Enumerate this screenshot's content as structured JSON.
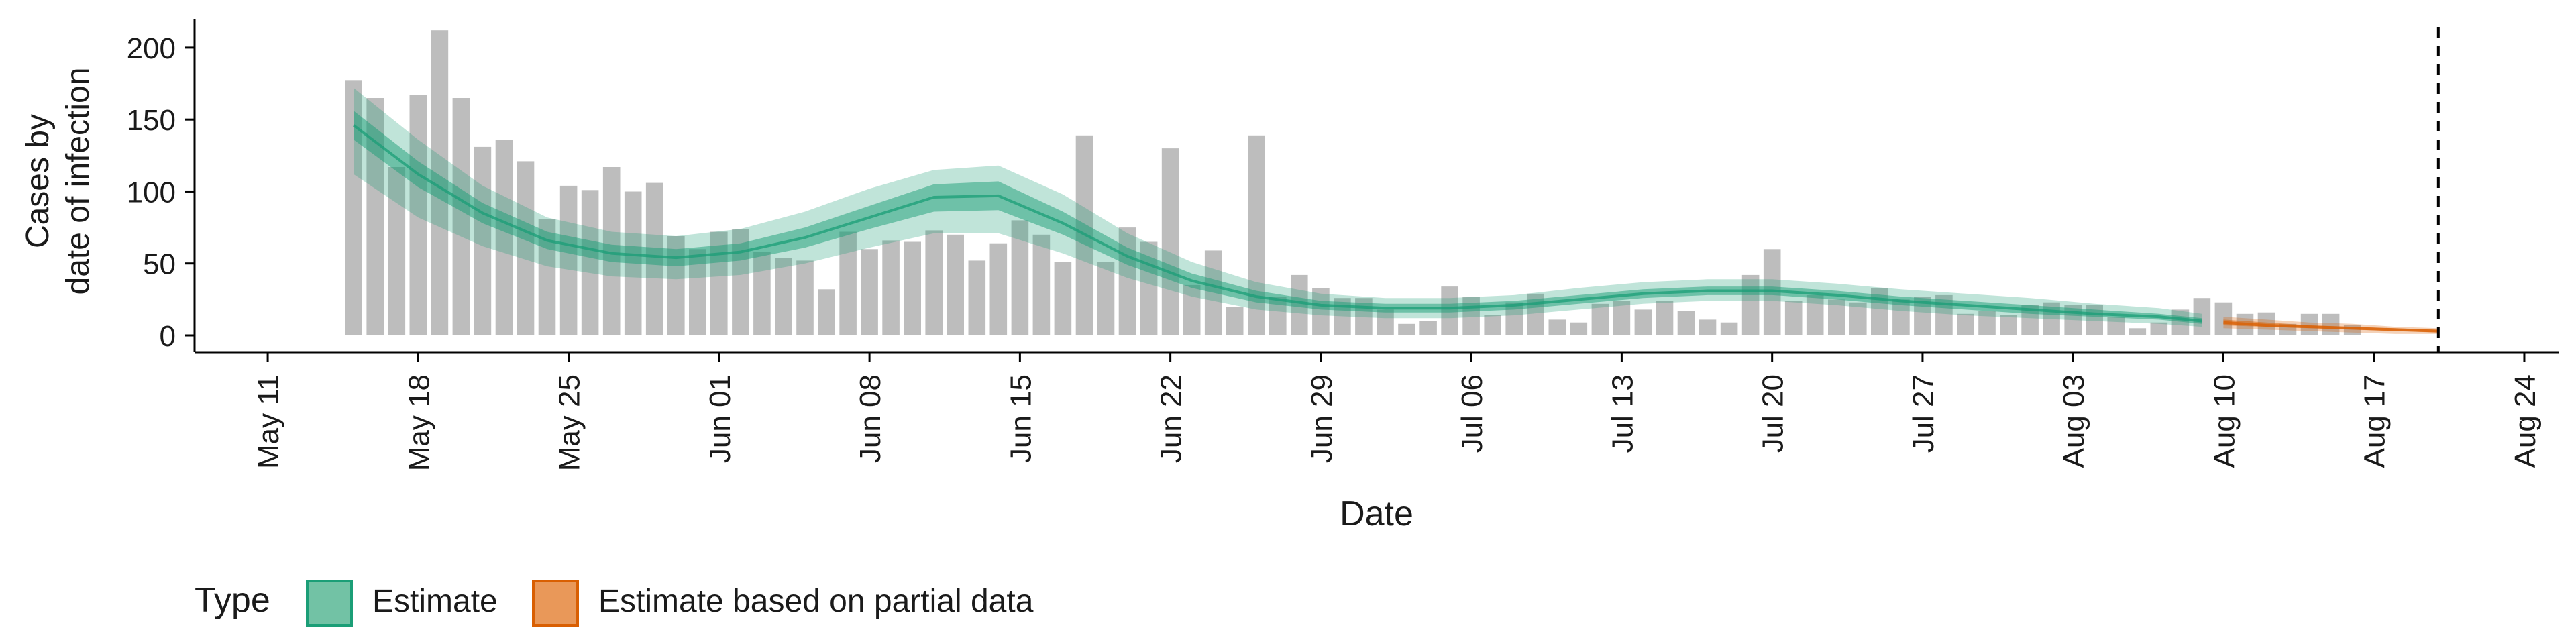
{
  "chart_data": {
    "type": "bar",
    "xlabel": "Date",
    "ylabel_lines": [
      "Cases by",
      "date of infection"
    ],
    "ylim": [
      0,
      220
    ],
    "y_ticks": [
      0,
      50,
      100,
      150,
      200
    ],
    "x_range": [
      "2020-05-09",
      "2020-08-25"
    ],
    "x_ticks": [
      {
        "date": "2020-05-11",
        "label": "May 11"
      },
      {
        "date": "2020-05-18",
        "label": "May 18"
      },
      {
        "date": "2020-05-25",
        "label": "May 25"
      },
      {
        "date": "2020-06-01",
        "label": "Jun 01"
      },
      {
        "date": "2020-06-08",
        "label": "Jun 08"
      },
      {
        "date": "2020-06-15",
        "label": "Jun 15"
      },
      {
        "date": "2020-06-22",
        "label": "Jun 22"
      },
      {
        "date": "2020-06-29",
        "label": "Jun 29"
      },
      {
        "date": "2020-07-06",
        "label": "Jul 06"
      },
      {
        "date": "2020-07-13",
        "label": "Jul 13"
      },
      {
        "date": "2020-07-20",
        "label": "Jul 20"
      },
      {
        "date": "2020-07-27",
        "label": "Jul 27"
      },
      {
        "date": "2020-08-03",
        "label": "Aug 03"
      },
      {
        "date": "2020-08-10",
        "label": "Aug 10"
      },
      {
        "date": "2020-08-17",
        "label": "Aug 17"
      },
      {
        "date": "2020-08-24",
        "label": "Aug 24"
      }
    ],
    "grid": false,
    "forecast_date": "2020-08-20",
    "bars": {
      "start_date": "2020-05-15",
      "color": "#bdbdbd",
      "values": [
        177,
        165,
        117,
        167,
        212,
        165,
        131,
        136,
        121,
        81,
        104,
        101,
        117,
        100,
        106,
        69,
        60,
        72,
        74,
        58,
        54,
        52,
        32,
        72,
        60,
        66,
        65,
        73,
        70,
        52,
        64,
        80,
        70,
        51,
        139,
        51,
        75,
        65,
        130,
        35,
        59,
        20,
        139,
        27,
        42,
        33,
        26,
        26,
        18,
        8,
        10,
        34,
        27,
        14,
        23,
        29,
        11,
        9,
        22,
        24,
        18,
        24,
        17,
        11,
        9,
        42,
        60,
        24,
        28,
        25,
        23,
        33,
        25,
        27,
        28,
        15,
        17,
        14,
        21,
        23,
        21,
        21,
        13,
        5,
        9,
        18,
        26,
        23,
        15,
        16,
        8,
        15,
        15,
        7
      ]
    },
    "series": [
      {
        "name": "Estimate",
        "color": "#1b9e77",
        "x": [
          "2020-05-15",
          "2020-05-18",
          "2020-05-21",
          "2020-05-24",
          "2020-05-27",
          "2020-05-30",
          "2020-06-02",
          "2020-06-05",
          "2020-06-08",
          "2020-06-11",
          "2020-06-14",
          "2020-06-17",
          "2020-06-20",
          "2020-06-23",
          "2020-06-26",
          "2020-06-29",
          "2020-07-02",
          "2020-07-05",
          "2020-07-08",
          "2020-07-11",
          "2020-07-14",
          "2020-07-17",
          "2020-07-20",
          "2020-07-23",
          "2020-07-26",
          "2020-07-29",
          "2020-08-01",
          "2020-08-04",
          "2020-08-07",
          "2020-08-09"
        ],
        "median": [
          146,
          112,
          85,
          66,
          57,
          54,
          58,
          68,
          82,
          96,
          97,
          78,
          55,
          38,
          27,
          21,
          19,
          19,
          21,
          25,
          29,
          31,
          31,
          28,
          24,
          21,
          18,
          15,
          13,
          10
        ],
        "lower_50": [
          136,
          103,
          78,
          60,
          51,
          48,
          52,
          61,
          74,
          86,
          87,
          70,
          49,
          33,
          23,
          18,
          16,
          16,
          18,
          22,
          26,
          28,
          28,
          25,
          21,
          18,
          15,
          13,
          11,
          8
        ],
        "upper_50": [
          156,
          121,
          92,
          72,
          63,
          60,
          64,
          75,
          90,
          105,
          107,
          86,
          61,
          43,
          31,
          24,
          22,
          22,
          24,
          28,
          32,
          34,
          34,
          31,
          27,
          24,
          21,
          18,
          15,
          12
        ],
        "lower_90": [
          112,
          82,
          62,
          48,
          41,
          39,
          42,
          50,
          61,
          71,
          71,
          57,
          40,
          27,
          18,
          14,
          12,
          12,
          14,
          18,
          22,
          24,
          24,
          21,
          17,
          14,
          12,
          10,
          8,
          6
        ],
        "upper_90": [
          172,
          136,
          104,
          82,
          72,
          69,
          74,
          86,
          102,
          115,
          118,
          98,
          71,
          51,
          37,
          29,
          26,
          26,
          28,
          33,
          37,
          39,
          39,
          36,
          32,
          29,
          26,
          22,
          19,
          15
        ]
      },
      {
        "name": "Estimate based on partial data",
        "color": "#d95f02",
        "x": [
          "2020-08-10",
          "2020-08-12",
          "2020-08-14",
          "2020-08-16",
          "2020-08-18",
          "2020-08-20"
        ],
        "median": [
          9,
          7,
          6,
          5,
          4,
          3
        ],
        "lower_50": [
          7,
          6,
          5,
          4,
          3,
          2
        ],
        "upper_50": [
          11,
          9,
          7,
          6,
          5,
          4
        ],
        "lower_90": [
          5,
          4,
          3,
          2,
          1,
          1
        ],
        "upper_90": [
          13,
          11,
          9,
          8,
          6,
          5
        ]
      }
    ],
    "legend": {
      "title": "Type",
      "position": "bottom",
      "items": [
        {
          "label": "Estimate",
          "color": "#1b9e77"
        },
        {
          "label": "Estimate based on partial data",
          "color": "#d95f02"
        }
      ]
    }
  }
}
